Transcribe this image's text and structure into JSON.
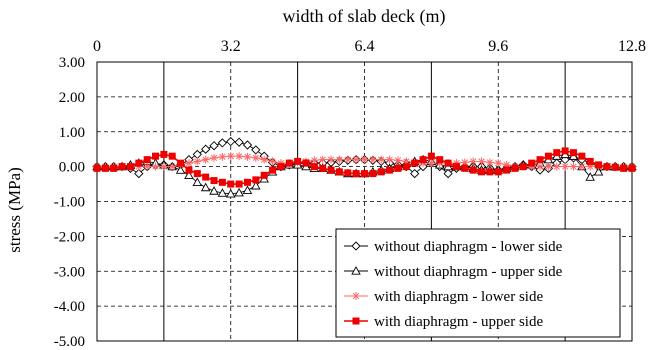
{
  "chart_data": {
    "type": "line",
    "title": "width of slab deck (m)",
    "xlabel": "width of slab deck (m)",
    "ylabel": "stress (MPa)",
    "xlim": [
      0,
      12.8
    ],
    "ylim": [
      -5.0,
      3.0
    ],
    "x_ticks": [
      "0",
      "3.2",
      "6.4",
      "9.6",
      "12.8"
    ],
    "x_tick_values": [
      0,
      3.2,
      6.4,
      9.6,
      12.8
    ],
    "y_ticks": [
      "3.00",
      "2.00",
      "1.00",
      "0.00",
      "-1.00",
      "-2.00",
      "-3.00",
      "-4.00",
      "-5.00"
    ],
    "y_tick_values": [
      3,
      2,
      1,
      0,
      -1,
      -2,
      -3,
      -4,
      -5
    ],
    "x_axis_position": "top",
    "solid_vertical_lines": [
      1.6,
      4.8,
      8.0,
      11.2
    ],
    "grid": "dashed",
    "legend_position": "bottom-right",
    "series": [
      {
        "name": "without diaphragm - lower side",
        "color": "#000000",
        "marker": "diamond-open",
        "x": [
          0,
          0.2,
          0.4,
          0.6,
          0.8,
          1.0,
          1.2,
          1.4,
          1.6,
          1.8,
          2.0,
          2.2,
          2.4,
          2.6,
          2.8,
          3.0,
          3.2,
          3.4,
          3.6,
          3.8,
          4.0,
          4.2,
          4.4,
          4.6,
          4.8,
          5.0,
          5.2,
          5.4,
          5.6,
          5.8,
          6.0,
          6.2,
          6.4,
          6.6,
          6.8,
          7.0,
          7.2,
          7.4,
          7.6,
          7.8,
          8.0,
          8.2,
          8.4,
          8.6,
          8.8,
          9.0,
          9.2,
          9.4,
          9.6,
          9.8,
          10.0,
          10.2,
          10.4,
          10.6,
          10.8,
          11.0,
          11.2,
          11.4,
          11.6,
          11.8,
          12.0,
          12.2,
          12.4,
          12.6,
          12.8
        ],
        "y": [
          0.0,
          0.0,
          0.0,
          0.0,
          -0.05,
          -0.2,
          0.0,
          0.05,
          0.05,
          0.0,
          0.05,
          0.2,
          0.35,
          0.5,
          0.6,
          0.68,
          0.72,
          0.7,
          0.62,
          0.48,
          0.3,
          0.12,
          0.0,
          0.05,
          0.1,
          0.1,
          0.1,
          0.1,
          0.12,
          0.15,
          0.18,
          0.2,
          0.2,
          0.18,
          0.15,
          0.1,
          0.05,
          0.0,
          -0.2,
          0.0,
          0.1,
          0.0,
          -0.2,
          -0.05,
          0.0,
          0.0,
          0.0,
          -0.05,
          -0.1,
          -0.05,
          0.0,
          0.05,
          0.0,
          -0.1,
          -0.05,
          0.1,
          0.2,
          0.25,
          0.2,
          0.1,
          0.0,
          0.0,
          0.0,
          0.0,
          0.0
        ]
      },
      {
        "name": "without diaphragm - upper side",
        "color": "#000000",
        "marker": "triangle-open",
        "x": [
          0,
          0.2,
          0.4,
          0.6,
          0.8,
          1.0,
          1.2,
          1.4,
          1.6,
          1.8,
          2.0,
          2.2,
          2.4,
          2.6,
          2.8,
          3.0,
          3.2,
          3.4,
          3.6,
          3.8,
          4.0,
          4.2,
          4.4,
          4.6,
          4.8,
          5.0,
          5.2,
          5.4,
          5.6,
          5.8,
          6.0,
          6.2,
          6.4,
          6.6,
          6.8,
          7.0,
          7.2,
          7.4,
          7.6,
          7.8,
          8.0,
          8.2,
          8.4,
          8.6,
          8.8,
          9.0,
          9.2,
          9.4,
          9.6,
          9.8,
          10.0,
          10.2,
          10.4,
          10.6,
          10.8,
          11.0,
          11.2,
          11.4,
          11.6,
          11.8,
          12.0,
          12.2,
          12.4,
          12.6,
          12.8
        ],
        "y": [
          0.0,
          0.0,
          0.0,
          0.0,
          0.05,
          0.1,
          0.15,
          0.1,
          0.05,
          0.0,
          -0.1,
          -0.25,
          -0.45,
          -0.6,
          -0.7,
          -0.76,
          -0.78,
          -0.75,
          -0.68,
          -0.55,
          -0.35,
          -0.15,
          0.0,
          0.05,
          0.05,
          0.0,
          -0.05,
          -0.05,
          -0.1,
          -0.15,
          -0.2,
          -0.2,
          -0.2,
          -0.15,
          -0.1,
          -0.05,
          0.0,
          0.1,
          0.15,
          0.2,
          0.15,
          0.05,
          0.0,
          0.0,
          0.0,
          -0.05,
          -0.1,
          -0.1,
          -0.1,
          -0.05,
          0.0,
          0.05,
          0.05,
          0.1,
          0.2,
          0.3,
          0.35,
          0.3,
          0.0,
          -0.3,
          -0.15,
          0.0,
          0.0,
          0.0,
          0.0
        ]
      },
      {
        "name": "with diaphragm - lower side",
        "color": "#ff6666",
        "marker": "asterisk",
        "x": [
          0,
          0.2,
          0.4,
          0.6,
          0.8,
          1.0,
          1.2,
          1.4,
          1.6,
          1.8,
          2.0,
          2.2,
          2.4,
          2.6,
          2.8,
          3.0,
          3.2,
          3.4,
          3.6,
          3.8,
          4.0,
          4.2,
          4.4,
          4.6,
          4.8,
          5.0,
          5.2,
          5.4,
          5.6,
          5.8,
          6.0,
          6.2,
          6.4,
          6.6,
          6.8,
          7.0,
          7.2,
          7.4,
          7.6,
          7.8,
          8.0,
          8.2,
          8.4,
          8.6,
          8.8,
          9.0,
          9.2,
          9.4,
          9.6,
          9.8,
          10.0,
          10.2,
          10.4,
          10.6,
          10.8,
          11.0,
          11.2,
          11.4,
          11.6,
          11.8,
          12.0,
          12.2,
          12.4,
          12.6,
          12.8
        ],
        "y": [
          0.0,
          0.0,
          0.0,
          0.0,
          0.0,
          0.0,
          0.0,
          0.0,
          0.0,
          0.0,
          0.05,
          0.1,
          0.15,
          0.2,
          0.25,
          0.28,
          0.3,
          0.3,
          0.28,
          0.25,
          0.2,
          0.15,
          0.1,
          0.1,
          0.12,
          0.15,
          0.18,
          0.2,
          0.2,
          0.2,
          0.2,
          0.2,
          0.2,
          0.2,
          0.2,
          0.2,
          0.18,
          0.15,
          0.12,
          0.1,
          0.1,
          0.1,
          0.1,
          0.1,
          0.12,
          0.15,
          0.15,
          0.12,
          0.1,
          0.05,
          0.0,
          0.0,
          0.0,
          0.0,
          0.0,
          0.0,
          0.0,
          0.0,
          0.0,
          0.0,
          0.0,
          0.0,
          0.0,
          0.0,
          0.0
        ]
      },
      {
        "name": "with diaphragm - upper side",
        "color": "#ee0000",
        "marker": "square-filled",
        "x": [
          0,
          0.2,
          0.4,
          0.6,
          0.8,
          1.0,
          1.2,
          1.4,
          1.6,
          1.8,
          2.0,
          2.2,
          2.4,
          2.6,
          2.8,
          3.0,
          3.2,
          3.4,
          3.6,
          3.8,
          4.0,
          4.2,
          4.4,
          4.6,
          4.8,
          5.0,
          5.2,
          5.4,
          5.6,
          5.8,
          6.0,
          6.2,
          6.4,
          6.6,
          6.8,
          7.0,
          7.2,
          7.4,
          7.6,
          7.8,
          8.0,
          8.2,
          8.4,
          8.6,
          8.8,
          9.0,
          9.2,
          9.4,
          9.6,
          9.8,
          10.0,
          10.2,
          10.4,
          10.6,
          10.8,
          11.0,
          11.2,
          11.4,
          11.6,
          11.8,
          12.0,
          12.2,
          12.4,
          12.6,
          12.8
        ],
        "y": [
          -0.05,
          -0.05,
          -0.05,
          0.0,
          0.0,
          0.1,
          0.2,
          0.3,
          0.35,
          0.3,
          0.1,
          -0.1,
          -0.2,
          -0.3,
          -0.4,
          -0.45,
          -0.5,
          -0.5,
          -0.45,
          -0.38,
          -0.25,
          -0.1,
          0.0,
          0.1,
          0.15,
          0.1,
          0.0,
          -0.05,
          -0.1,
          -0.15,
          -0.18,
          -0.2,
          -0.2,
          -0.2,
          -0.15,
          -0.1,
          -0.05,
          0.0,
          0.1,
          0.2,
          0.3,
          0.2,
          0.1,
          0.0,
          -0.05,
          -0.1,
          -0.15,
          -0.15,
          -0.15,
          -0.1,
          -0.05,
          0.0,
          0.1,
          0.2,
          0.3,
          0.4,
          0.45,
          0.4,
          0.3,
          0.15,
          0.05,
          0.0,
          -0.02,
          -0.05,
          -0.05
        ]
      }
    ]
  }
}
